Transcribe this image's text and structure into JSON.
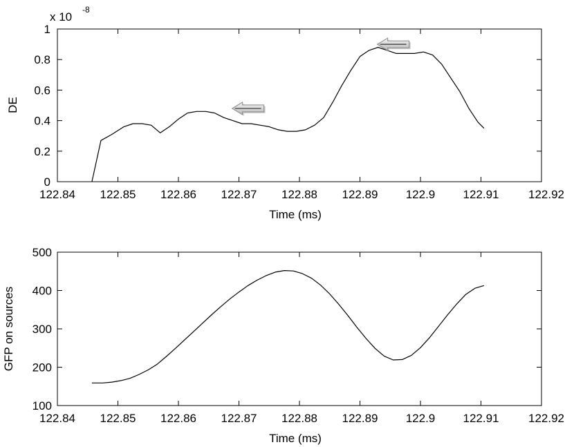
{
  "chart_data": [
    {
      "type": "line",
      "xlabel": "Time (ms)",
      "ylabel": "DE",
      "exponent_label": {
        "base": "x 10",
        "power": "-8"
      },
      "xlim": [
        122.84,
        122.92
      ],
      "ylim": [
        0,
        1
      ],
      "xticks": [
        122.84,
        122.85,
        122.86,
        122.87,
        122.88,
        122.89,
        122.9,
        122.91,
        122.92
      ],
      "xtick_labels": [
        "122.84",
        "122.85",
        "122.86",
        "122.87",
        "122.88",
        "122.89",
        "122.9",
        "122.91",
        "122.92"
      ],
      "yticks": [
        0,
        0.2,
        0.4,
        0.6,
        0.8,
        1
      ],
      "ytick_labels": [
        "0",
        "0.2",
        "0.4",
        "0.6",
        "0.8",
        "1"
      ],
      "grid": false,
      "series": [
        {
          "color": "#000000",
          "x": [
            122.8457,
            122.8472,
            122.849,
            122.851,
            122.8525,
            122.854,
            122.8555,
            122.857,
            122.8585,
            122.86,
            122.8615,
            122.863,
            122.8645,
            122.866,
            122.8675,
            122.869,
            122.8705,
            122.872,
            122.8735,
            122.875,
            122.8765,
            122.878,
            122.8795,
            122.881,
            122.8825,
            122.884,
            122.8855,
            122.887,
            122.8885,
            122.89,
            122.8915,
            122.893,
            122.8945,
            122.896,
            122.8975,
            122.899,
            122.9005,
            122.902,
            122.9035,
            122.905,
            122.9065,
            122.908,
            122.9095,
            122.9105
          ],
          "y": [
            0,
            0.27,
            0.31,
            0.36,
            0.38,
            0.38,
            0.37,
            0.32,
            0.36,
            0.41,
            0.45,
            0.46,
            0.46,
            0.45,
            0.42,
            0.4,
            0.38,
            0.38,
            0.37,
            0.36,
            0.34,
            0.33,
            0.33,
            0.34,
            0.37,
            0.42,
            0.52,
            0.63,
            0.73,
            0.82,
            0.86,
            0.88,
            0.86,
            0.84,
            0.84,
            0.84,
            0.85,
            0.83,
            0.77,
            0.68,
            0.59,
            0.48,
            0.39,
            0.35
          ]
        }
      ],
      "annotations": [
        {
          "type": "arrow",
          "direction": "left",
          "x": 122.8715,
          "y": 0.48
        },
        {
          "type": "arrow",
          "direction": "left",
          "x": 122.8955,
          "y": 0.9
        }
      ]
    },
    {
      "type": "line",
      "xlabel": "Time (ms)",
      "ylabel": "GFP on sources",
      "xlim": [
        122.84,
        122.92
      ],
      "ylim": [
        100,
        500
      ],
      "xticks": [
        122.84,
        122.85,
        122.86,
        122.87,
        122.88,
        122.89,
        122.9,
        122.91,
        122.92
      ],
      "xtick_labels": [
        "122.84",
        "122.85",
        "122.86",
        "122.87",
        "122.88",
        "122.89",
        "122.9",
        "122.91",
        "122.92"
      ],
      "yticks": [
        100,
        200,
        300,
        400,
        500
      ],
      "ytick_labels": [
        "100",
        "200",
        "300",
        "400",
        "500"
      ],
      "grid": false,
      "series": [
        {
          "color": "#000000",
          "x": [
            122.8457,
            122.8475,
            122.849,
            122.8505,
            122.852,
            122.8535,
            122.855,
            122.8565,
            122.858,
            122.8595,
            122.861,
            122.8625,
            122.864,
            122.8655,
            122.867,
            122.8685,
            122.87,
            122.8715,
            122.873,
            122.8745,
            122.876,
            122.8775,
            122.879,
            122.8805,
            122.882,
            122.8835,
            122.885,
            122.8865,
            122.888,
            122.8895,
            122.891,
            122.8925,
            122.894,
            122.8955,
            122.897,
            122.8985,
            122.9,
            122.9015,
            122.903,
            122.9045,
            122.906,
            122.9075,
            122.909,
            122.9105
          ],
          "y": [
            159,
            159,
            161,
            165,
            171,
            181,
            193,
            208,
            228,
            249,
            271,
            293,
            315,
            337,
            358,
            378,
            396,
            413,
            427,
            439,
            448,
            452,
            451,
            444,
            432,
            414,
            391,
            364,
            335,
            304,
            275,
            249,
            229,
            219,
            220,
            231,
            251,
            277,
            307,
            337,
            365,
            390,
            406,
            413
          ]
        }
      ]
    }
  ]
}
